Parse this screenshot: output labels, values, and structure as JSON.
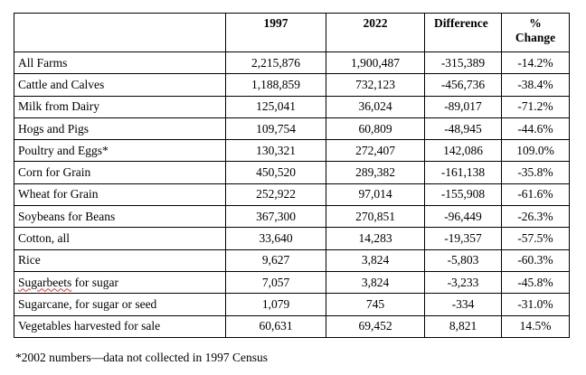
{
  "table": {
    "headers": {
      "category": "",
      "y1997": "1997",
      "y2022": "2022",
      "difference": "Difference",
      "pct_line1": "%",
      "pct_line2": "Change"
    },
    "rows": [
      {
        "category": "All Farms",
        "v1997": "2,215,876",
        "v2022": "1,900,487",
        "difference": "-315,389",
        "pct_change": "-14.2%"
      },
      {
        "category": "Cattle and Calves",
        "v1997": "1,188,859",
        "v2022": "732,123",
        "difference": "-456,736",
        "pct_change": "-38.4%"
      },
      {
        "category": "Milk from Dairy",
        "v1997": "125,041",
        "v2022": "36,024",
        "difference": "-89,017",
        "pct_change": "-71.2%"
      },
      {
        "category": "Hogs and Pigs",
        "v1997": "109,754",
        "v2022": "60,809",
        "difference": "-48,945",
        "pct_change": "-44.6%"
      },
      {
        "category": "Poultry and Eggs*",
        "v1997": "130,321",
        "v2022": "272,407",
        "difference": "142,086",
        "pct_change": "109.0%"
      },
      {
        "category": "Corn for Grain",
        "v1997": "450,520",
        "v2022": "289,382",
        "difference": "-161,138",
        "pct_change": "-35.8%"
      },
      {
        "category": "Wheat for Grain",
        "v1997": "252,922",
        "v2022": "97,014",
        "difference": "-155,908",
        "pct_change": "-61.6%"
      },
      {
        "category": "Soybeans for Beans",
        "v1997": "367,300",
        "v2022": "270,851",
        "difference": "-96,449",
        "pct_change": "-26.3%"
      },
      {
        "category": "Cotton, all",
        "v1997": "33,640",
        "v2022": "14,283",
        "difference": "-19,357",
        "pct_change": "-57.5%"
      },
      {
        "category": "Rice",
        "v1997": "9,627",
        "v2022": "3,824",
        "difference": "-5,803",
        "pct_change": "-60.3%"
      },
      {
        "category_word1": "Sugarbeets",
        "category_rest": " for sugar",
        "v1997": "7,057",
        "v2022": "3,824",
        "difference": "-3,233",
        "pct_change": "-45.8%"
      },
      {
        "category": "Sugarcane, for sugar or seed",
        "v1997": "1,079",
        "v2022": "745",
        "difference": "-334",
        "pct_change": "-31.0%"
      },
      {
        "category": "Vegetables harvested for sale",
        "v1997": "60,631",
        "v2022": "69,452",
        "difference": "8,821",
        "pct_change": "14.5%"
      }
    ]
  },
  "footnote": "*2002 numbers—data not collected in 1997 Census"
}
